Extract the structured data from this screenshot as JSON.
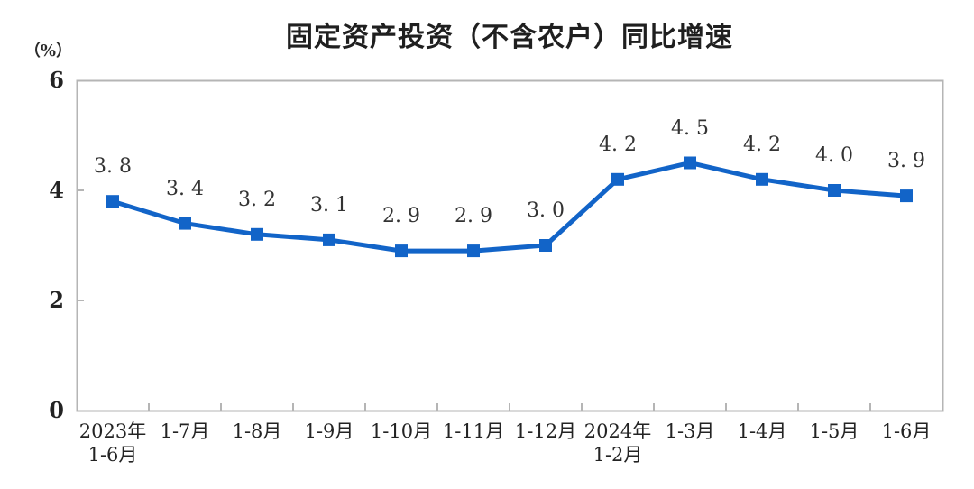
{
  "chart_data": {
    "type": "line",
    "title": "固定资产投资（不含农户）同比增速",
    "unit_label": "（%）",
    "categories": [
      [
        "2023年",
        "1-6月"
      ],
      [
        "1-7月"
      ],
      [
        "1-8月"
      ],
      [
        "1-9月"
      ],
      [
        "1-10月"
      ],
      [
        "1-11月"
      ],
      [
        "1-12月"
      ],
      [
        "2024年",
        "1-2月"
      ],
      [
        "1-3月"
      ],
      [
        "1-4月"
      ],
      [
        "1-5月"
      ],
      [
        "1-6月"
      ]
    ],
    "values": [
      3.8,
      3.4,
      3.2,
      3.1,
      2.9,
      2.9,
      3.0,
      4.2,
      4.5,
      4.2,
      4.0,
      3.9
    ],
    "value_labels": [
      "3. 8",
      "3. 4",
      "3. 2",
      "3. 1",
      "2. 9",
      "2. 9",
      "3. 0",
      "4. 2",
      "4. 5",
      "4. 2",
      "4. 0",
      "3. 9"
    ],
    "xlabel": "",
    "ylabel": "（%）",
    "ylim": [
      0,
      6
    ],
    "y_ticks": [
      0,
      2,
      4,
      6
    ],
    "grid": "off",
    "legend": "none",
    "marker": "square",
    "colors": {
      "line": "#1264c8",
      "marker": "#1264c8",
      "axis_border": "#b5b5b5",
      "text": "#232323"
    }
  }
}
